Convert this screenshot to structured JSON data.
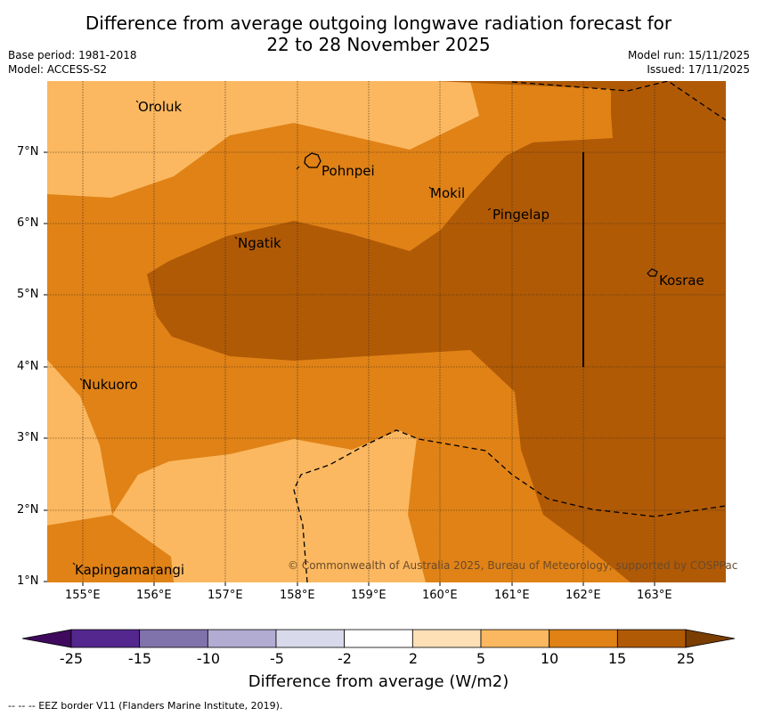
{
  "title": {
    "line1": "Difference from average outgoing longwave radiation forecast for",
    "line2": "22 to 28 November 2025"
  },
  "meta": {
    "base_period": "Base period: 1981-2018",
    "model": "Model: ACCESS-S2",
    "model_run": "Model run: 15/11/2025",
    "issued": "Issued: 17/11/2025"
  },
  "map": {
    "lat_labels": [
      "7°N",
      "6°N",
      "5°N",
      "4°N",
      "3°N",
      "2°N",
      "1°N"
    ],
    "lon_labels": [
      "155°E",
      "156°E",
      "157°E",
      "158°E",
      "159°E",
      "160°E",
      "161°E",
      "162°E",
      "163°E"
    ],
    "places": {
      "oroluk": "Oroluk",
      "pohnpei": "Pohnpei",
      "mokil": "Mokil",
      "pingelap": "Pingelap",
      "ngatik": "Ngatik",
      "kosrae": "Kosrae",
      "nukuoro": "Nukuoro",
      "kapingamarangi": "Kapingamarangi"
    },
    "copyright": "© Commonwealth of Australia 2025, Bureau of Meteorology, supported by COSPPac",
    "colors": {
      "band_5_10": "#fbb860",
      "band_10_15": "#e08216",
      "band_15_25": "#b05a06"
    }
  },
  "colorbar": {
    "ticks": [
      "-25",
      "-15",
      "-10",
      "-5",
      "-2",
      "2",
      "5",
      "10",
      "15",
      "25"
    ],
    "colors": [
      "#3f0a5e",
      "#54278f",
      "#8073ac",
      "#b2abd2",
      "#d8daeb",
      "#ffffff",
      "#fee0b6",
      "#fbb860",
      "#e08216",
      "#b05a06",
      "#7a3d02"
    ],
    "label": "Difference from average (W/m2)"
  },
  "footer": "--  --  -- EEZ border V11 (Flanders Marine Institute, 2019)."
}
